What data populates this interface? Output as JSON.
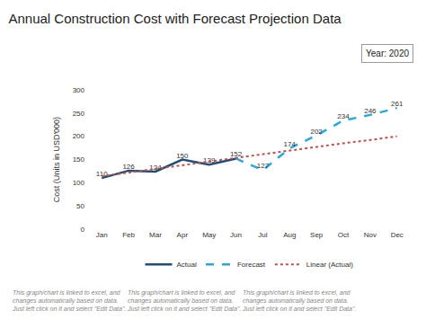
{
  "chart_data": {
    "type": "line",
    "title": "Annual Construction Cost with Forecast Projection Data",
    "annotations": [
      "Year: 2020"
    ],
    "y_label": "Cost (Units in USD'000)",
    "categories": [
      "Jan",
      "Feb",
      "Mar",
      "Apr",
      "May",
      "Jun",
      "Jul",
      "Aug",
      "Sep",
      "Oct",
      "Nov",
      "Dec"
    ],
    "series": [
      {
        "name": "Actual",
        "color": "#1f4e79",
        "line_style": "solid",
        "data_labels": true,
        "values": [
          110,
          126,
          124,
          150,
          139,
          152,
          null,
          null,
          null,
          null,
          null,
          null
        ]
      },
      {
        "name": "Forecast",
        "color": "#29a8e0",
        "line_style": "dash",
        "data_labels": true,
        "values": [
          null,
          null,
          null,
          null,
          null,
          152,
          127,
          174,
          202,
          234,
          246,
          261
        ]
      },
      {
        "name": "Linear (Actual)",
        "color": "#c0504d",
        "line_style": "dot",
        "data_labels": false,
        "values": [
          114,
          122,
          130,
          137,
          145,
          153,
          161,
          169,
          177,
          185,
          192,
          200
        ]
      }
    ],
    "ylim": [
      0,
      300
    ],
    "yticks": [
      0,
      50,
      100,
      150,
      200,
      250,
      300
    ],
    "grid": false,
    "legend": "bottom",
    "notes": [
      [
        "This graph/chart is linked to excel, and",
        "changes automatically based on data.",
        "Just left click on it and select \"Edit Data\"."
      ],
      [
        "This graph/chart is linked to excel, and",
        "changes automatically based on data.",
        "Just left click on it and select \"Edit Data\"."
      ],
      [
        "This graph/chart is linked to excel, and",
        "changes automatically based on data.",
        "Just left click on it and select \"Edit Data\"."
      ]
    ]
  }
}
